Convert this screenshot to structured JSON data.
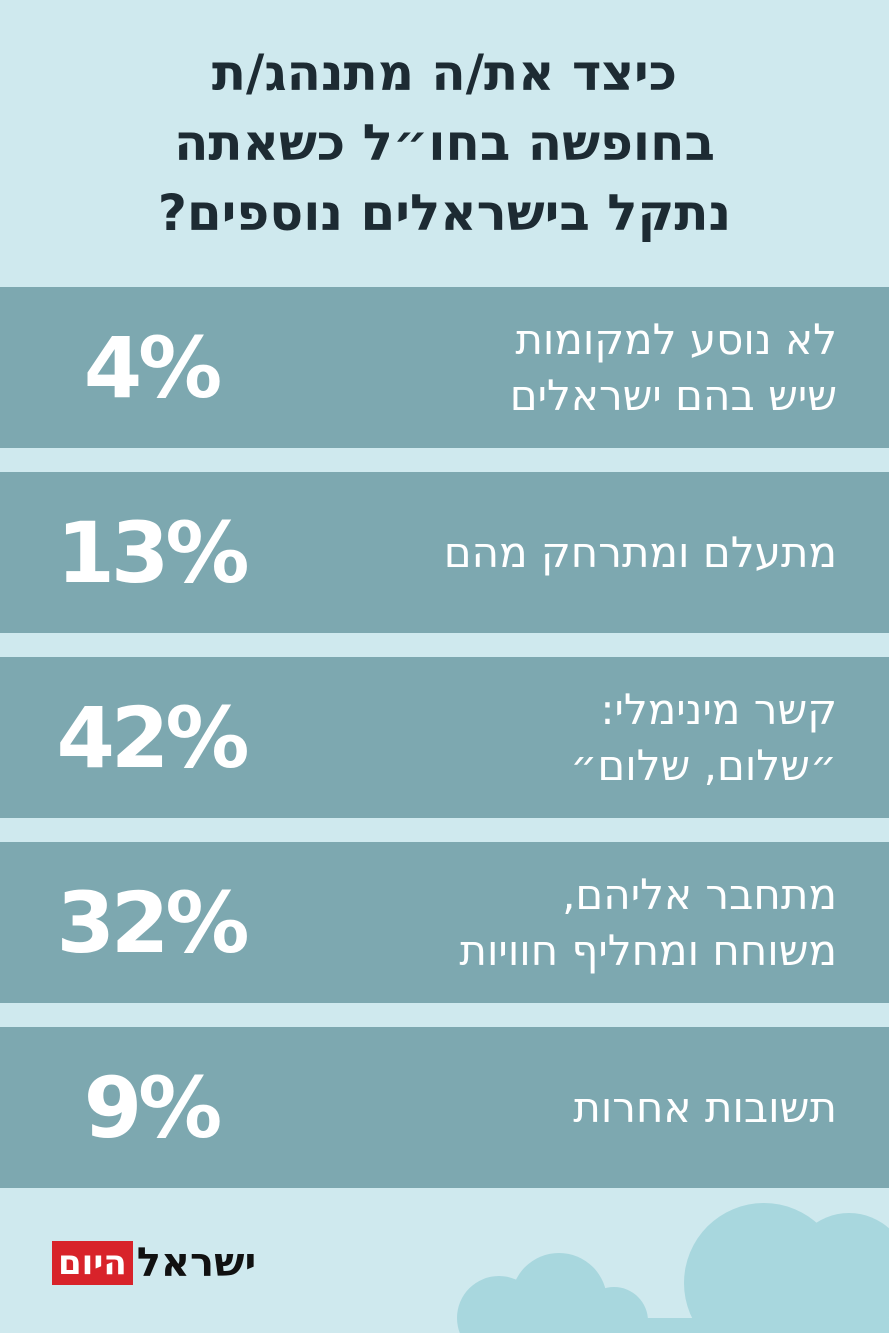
{
  "title_lines": [
    "כיצד את/ה מתנהג/ת",
    "בחופשה בחו״ל כשאתה",
    "נתקל בישראלים נוספים?"
  ],
  "chart_data": {
    "type": "table",
    "rows": [
      {
        "label_lines": [
          "לא נוסע למקומות",
          "שיש בהם ישראלים"
        ],
        "value": 4,
        "display": "4%"
      },
      {
        "label_lines": [
          "מתעלם ומתרחק מהם"
        ],
        "value": 13,
        "display": "13%"
      },
      {
        "label_lines": [
          "קשר מינימלי:",
          "״שלום, שלום״"
        ],
        "value": 42,
        "display": "42%"
      },
      {
        "label_lines": [
          "מתחבר אליהם,",
          "משוחח ומחליף חוויות"
        ],
        "value": 32,
        "display": "32%"
      },
      {
        "label_lines": [
          "תשובות אחרות"
        ],
        "value": 9,
        "display": "9%"
      }
    ]
  },
  "logo": {
    "part_black": "ישראל",
    "part_red": "היום"
  },
  "colors": {
    "background": "#cfe9ee",
    "row": "#7da8b0",
    "title": "#1d2b33",
    "logo_red": "#d8232a"
  }
}
